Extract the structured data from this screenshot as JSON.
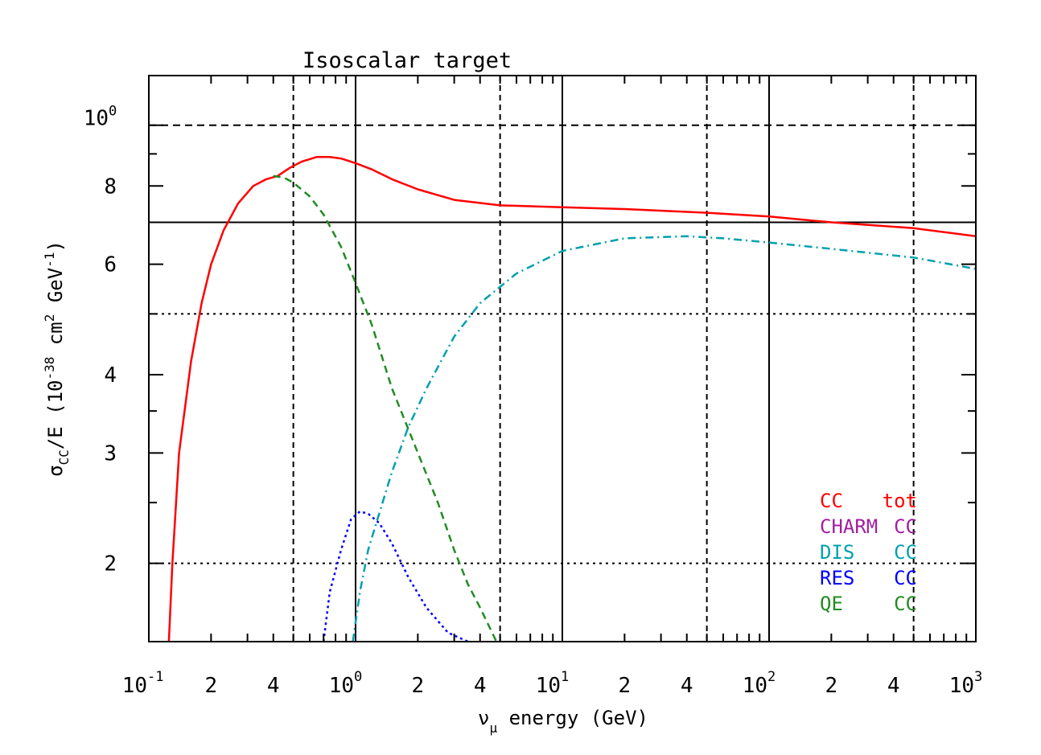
{
  "chart_data": {
    "type": "line",
    "title": "Isoscalar target",
    "xlabel": {
      "symbol": "ν",
      "subscript": "μ",
      "text": "energy (GeV)"
    },
    "ylabel": {
      "sigma": "σ",
      "subscript": "CC",
      "slash_e": "/E (10",
      "exp1": "-38",
      "mid": " cm",
      "exp2": "2",
      "mid2": " GeV",
      "exp3": "-1",
      "close": ")"
    },
    "x_scale": "log",
    "y_scale": "log",
    "xlim": [
      0.1,
      1000
    ],
    "ylim": [
      1.45,
      1.2
    ],
    "x_major_ticks": [
      {
        "value": 0.1,
        "base": "10",
        "exp": "-1"
      },
      {
        "value": 1,
        "base": "10",
        "exp": "0"
      },
      {
        "value": 10,
        "base": "10",
        "exp": "1"
      },
      {
        "value": 100,
        "base": "10",
        "exp": "2"
      },
      {
        "value": 1000,
        "base": "10",
        "exp": "3"
      }
    ],
    "x_minor_labels": [
      {
        "value": 0.2,
        "label": "2"
      },
      {
        "value": 0.4,
        "label": "4"
      },
      {
        "value": 2,
        "label": "2"
      },
      {
        "value": 4,
        "label": "4"
      },
      {
        "value": 20,
        "label": "2"
      },
      {
        "value": 40,
        "label": "4"
      },
      {
        "value": 200,
        "label": "2"
      },
      {
        "value": 400,
        "label": "4"
      }
    ],
    "y_tick_labels": [
      {
        "value": 1.0,
        "base": "10",
        "exp": "0"
      },
      {
        "value": 0.8,
        "label": "8"
      },
      {
        "value": 0.6,
        "label": "6"
      },
      {
        "value": 0.4,
        "label": "4"
      },
      {
        "value": 0.3,
        "label": "3"
      },
      {
        "value": 0.2,
        "label": "2"
      }
    ],
    "ytick_note": "the y-axis uses its own printed labels (10^0 at 1.0; 8,6,4,3,2 = tenths)",
    "y_range": [
      0.15,
      1.2
    ],
    "grid": {
      "solid_x": [
        1,
        10,
        100
      ],
      "dashed_x": [
        0.5,
        5,
        50,
        500
      ],
      "solid_y": [
        0.7
      ],
      "dashed_y": [
        1.0
      ],
      "dotted_y": [
        0.5,
        0.2
      ]
    },
    "legend_position": "bottom-right",
    "legend": [
      {
        "left": "CC",
        "right": "tot",
        "color": "#ff0000"
      },
      {
        "left": "CHARM",
        "right": "CC",
        "color": "#a020a0"
      },
      {
        "left": "DIS",
        "right": "CC",
        "color": "#00a0b0"
      },
      {
        "left": "RES",
        "right": "CC",
        "color": "#0000ff"
      },
      {
        "left": "QE",
        "right": "CC",
        "color": "#228b22"
      }
    ],
    "series": [
      {
        "name": "CC tot",
        "color": "#ff0000",
        "style": "solid",
        "x": [
          0.125,
          0.13,
          0.14,
          0.16,
          0.18,
          0.2,
          0.23,
          0.27,
          0.32,
          0.37,
          0.42,
          0.48,
          0.55,
          0.65,
          0.75,
          0.85,
          1.0,
          1.2,
          1.5,
          2.0,
          3.0,
          5.0,
          10,
          20,
          50,
          100,
          200,
          500,
          1000
        ],
        "y": [
          0.15,
          0.2,
          0.3,
          0.42,
          0.52,
          0.6,
          0.68,
          0.75,
          0.8,
          0.82,
          0.83,
          0.855,
          0.875,
          0.89,
          0.89,
          0.885,
          0.87,
          0.85,
          0.82,
          0.79,
          0.76,
          0.745,
          0.74,
          0.735,
          0.725,
          0.715,
          0.7,
          0.685,
          0.665
        ]
      },
      {
        "name": "DIS CC",
        "color": "#00a0b0",
        "style": "dashdot",
        "x": [
          0.97,
          1.05,
          1.15,
          1.3,
          1.5,
          1.8,
          2.2,
          3.0,
          4.0,
          6.0,
          10,
          20,
          40,
          60,
          100,
          200,
          500,
          1000
        ],
        "y": [
          0.15,
          0.18,
          0.21,
          0.24,
          0.28,
          0.33,
          0.38,
          0.46,
          0.52,
          0.58,
          0.63,
          0.66,
          0.665,
          0.66,
          0.65,
          0.635,
          0.615,
          0.59
        ]
      },
      {
        "name": "RES CC",
        "color": "#0000ff",
        "style": "dotted",
        "x": [
          0.7,
          0.75,
          0.85,
          0.95,
          1.05,
          1.15,
          1.3,
          1.5,
          1.8,
          2.2,
          2.8,
          3.5
        ],
        "y": [
          0.15,
          0.18,
          0.21,
          0.235,
          0.242,
          0.24,
          0.232,
          0.215,
          0.19,
          0.17,
          0.155,
          0.15
        ]
      },
      {
        "name": "QE CC",
        "color": "#228b22",
        "style": "dashed",
        "x": [
          0.4,
          0.45,
          0.5,
          0.6,
          0.7,
          0.85,
          1.0,
          1.2,
          1.5,
          2.0,
          2.5,
          3.0,
          3.5,
          4.0,
          4.8
        ],
        "y": [
          0.83,
          0.825,
          0.81,
          0.77,
          0.72,
          0.64,
          0.56,
          0.48,
          0.38,
          0.3,
          0.25,
          0.21,
          0.185,
          0.17,
          0.15
        ]
      }
    ]
  }
}
